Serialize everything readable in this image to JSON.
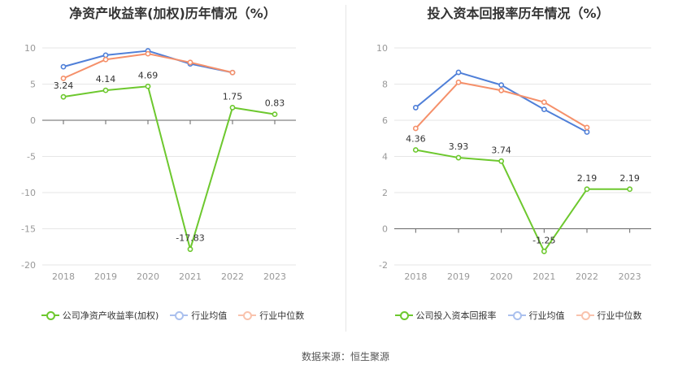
{
  "source_label": "数据来源：恒生聚源",
  "chart_data": [
    {
      "type": "line",
      "title": "净资产收益率(加权)历年情况（%）",
      "categories": [
        "2018",
        "2019",
        "2020",
        "2021",
        "2022",
        "2023"
      ],
      "ylim": [
        -20,
        10
      ],
      "yticks": [
        10,
        5,
        0,
        -5,
        -10,
        -15,
        -20
      ],
      "grid": true,
      "legend_position": "bottom",
      "series": [
        {
          "name": "公司净资产收益率(加权)",
          "color": "#6dc82e",
          "values": [
            3.24,
            4.14,
            4.69,
            -17.83,
            1.75,
            0.83
          ],
          "labels": [
            "3.24",
            "4.14",
            "4.69",
            "-17.83",
            "1.75",
            "0.83"
          ]
        },
        {
          "name": "行业均值",
          "color": "#4f7fd8",
          "values": [
            7.4,
            9.0,
            9.6,
            7.8,
            6.6,
            null
          ]
        },
        {
          "name": "行业中位数",
          "color": "#f5906a",
          "values": [
            5.8,
            8.4,
            9.2,
            8.0,
            6.6,
            null
          ]
        }
      ]
    },
    {
      "type": "line",
      "title": "投入资本回报率历年情况（%）",
      "categories": [
        "2018",
        "2019",
        "2020",
        "2021",
        "2022",
        "2023"
      ],
      "ylim": [
        -2,
        10
      ],
      "yticks": [
        10,
        8,
        6,
        4,
        2,
        0,
        -2
      ],
      "grid": true,
      "legend_position": "bottom",
      "series": [
        {
          "name": "公司投入资本回报率",
          "color": "#6dc82e",
          "values": [
            4.36,
            3.93,
            3.74,
            -1.25,
            2.19,
            2.19
          ],
          "labels": [
            "4.36",
            "3.93",
            "3.74",
            "-1.25",
            "2.19",
            "2.19"
          ]
        },
        {
          "name": "行业均值",
          "color": "#4f7fd8",
          "values": [
            6.7,
            8.65,
            7.95,
            6.6,
            5.35,
            null
          ]
        },
        {
          "name": "行业中位数",
          "color": "#f5906a",
          "values": [
            5.55,
            8.1,
            7.65,
            7.0,
            5.6,
            null
          ]
        }
      ]
    }
  ]
}
